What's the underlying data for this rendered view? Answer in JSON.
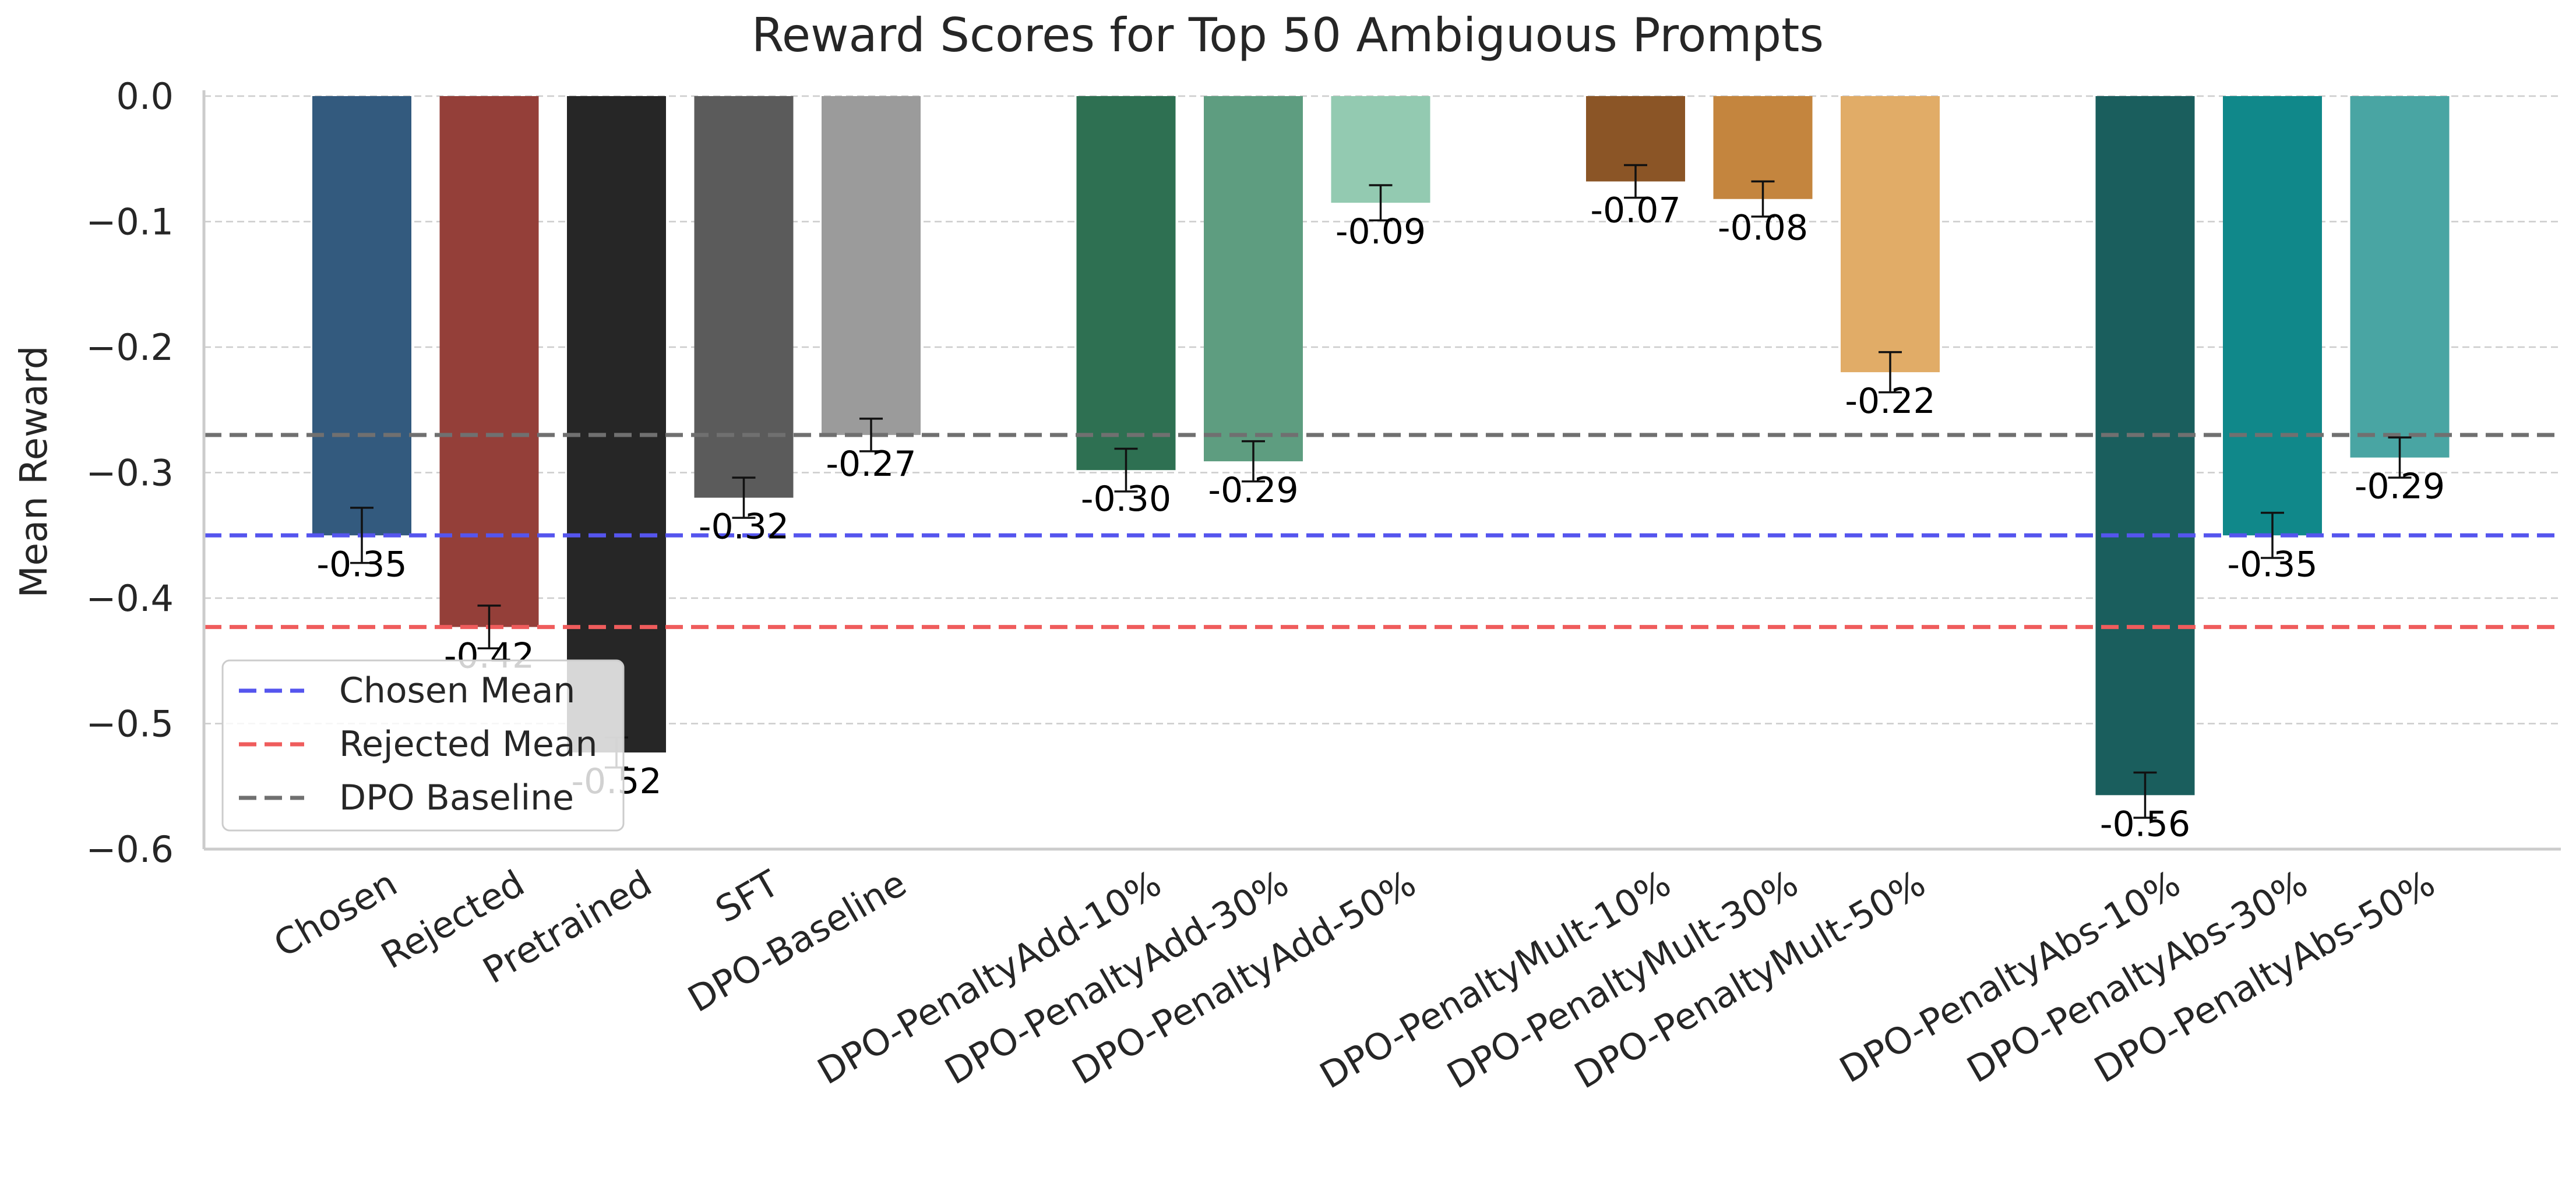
{
  "chart_data": {
    "type": "bar",
    "title": "Reward Scores for Top 50 Ambiguous Prompts",
    "xlabel": "",
    "ylabel": "Mean Reward",
    "ylim": [
      -0.6,
      0.0
    ],
    "yticks": [
      0.0,
      -0.1,
      -0.2,
      -0.3,
      -0.4,
      -0.5,
      -0.6
    ],
    "ytick_labels": [
      "0.0",
      "−0.1",
      "−0.2",
      "−0.3",
      "−0.4",
      "−0.5",
      "−0.6"
    ],
    "grid": true,
    "categories": [
      "Chosen",
      "Rejected",
      "Pretrained",
      "SFT",
      "DPO-Baseline",
      "DPO-PenaltyAdd-10%",
      "DPO-PenaltyAdd-30%",
      "DPO-PenaltyAdd-50%",
      "DPO-PenaltyMult-10%",
      "DPO-PenaltyMult-30%",
      "DPO-PenaltyMult-50%",
      "DPO-PenaltyAbs-10%",
      "DPO-PenaltyAbs-30%",
      "DPO-PenaltyAbs-50%"
    ],
    "groups": [
      [
        0,
        1,
        2,
        3,
        4
      ],
      [
        5,
        6,
        7
      ],
      [
        8,
        9,
        10
      ],
      [
        11,
        12,
        13
      ]
    ],
    "values": [
      -0.35,
      -0.423,
      -0.523,
      -0.32,
      -0.27,
      -0.298,
      -0.291,
      -0.085,
      -0.068,
      -0.082,
      -0.22,
      -0.557,
      -0.35,
      -0.288
    ],
    "errors": [
      0.022,
      0.017,
      0.012,
      0.016,
      0.013,
      0.017,
      0.016,
      0.014,
      0.013,
      0.014,
      0.016,
      0.018,
      0.018,
      0.016
    ],
    "value_labels": [
      "-0.35",
      "-0.42",
      "-0.52",
      "-0.32",
      "-0.27",
      "-0.30",
      "-0.29",
      "-0.09",
      "-0.07",
      "-0.08",
      "-0.22",
      "-0.56",
      "-0.35",
      "-0.29"
    ],
    "colors": [
      "#335a7e",
      "#943f39",
      "#262626",
      "#5b5b5b",
      "#9b9b9b",
      "#2e7052",
      "#5e9d80",
      "#93cab1",
      "#8b5526",
      "#c4853e",
      "#e1ac67",
      "#1a5e5d",
      "#10888a",
      "#49a5a3"
    ],
    "reference_lines": [
      {
        "name": "Chosen Mean",
        "value": -0.35,
        "color": "#5555ee"
      },
      {
        "name": "Rejected Mean",
        "value": -0.423,
        "color": "#ef5c5c"
      },
      {
        "name": "DPO Baseline",
        "value": -0.27,
        "color": "#707070"
      }
    ],
    "legend_position": "lower-left"
  }
}
